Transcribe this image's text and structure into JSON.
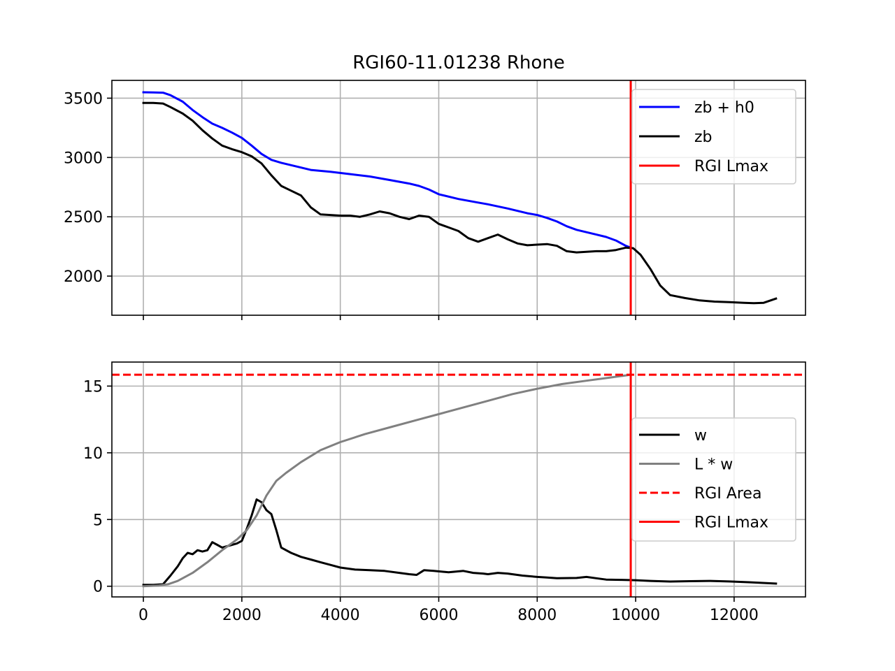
{
  "figure": {
    "title": "RGI60-11.01238 Rhone"
  },
  "colors": {
    "zb_h0": "#0000ff",
    "zb": "#000000",
    "lmax": "#ff0000",
    "w": "#000000",
    "Lw": "#808080",
    "area": "#ff0000",
    "grid": "#b0b0b0"
  },
  "chart_data": [
    {
      "type": "line",
      "title": "RGI60-11.01238 Rhone",
      "xlabel": "",
      "ylabel": "",
      "xlim": [
        -640,
        13450
      ],
      "ylim": [
        1670,
        3650
      ],
      "xticks": [
        0,
        2000,
        4000,
        6000,
        8000,
        10000,
        12000
      ],
      "yticks": [
        2000,
        2500,
        3000,
        3500
      ],
      "show_xtick_labels": false,
      "grid": true,
      "legend": "top-right",
      "series": [
        {
          "name": "zb + h0",
          "color": "#0000ff",
          "style": "solid",
          "x": [
            0,
            200,
            400,
            550,
            800,
            1000,
            1200,
            1400,
            1600,
            1800,
            2000,
            2200,
            2400,
            2600,
            2800,
            3000,
            3200,
            3400,
            3800,
            4200,
            4600,
            5000,
            5400,
            5600,
            5800,
            6000,
            6400,
            6800,
            7000,
            7400,
            7800,
            8000,
            8200,
            8400,
            8600,
            8800,
            9000,
            9200,
            9400,
            9600,
            9800,
            9900
          ],
          "y": [
            3550,
            3548,
            3546,
            3525,
            3470,
            3400,
            3340,
            3285,
            3250,
            3210,
            3165,
            3100,
            3030,
            2980,
            2955,
            2935,
            2915,
            2895,
            2880,
            2860,
            2840,
            2810,
            2780,
            2760,
            2730,
            2690,
            2650,
            2620,
            2605,
            2570,
            2530,
            2515,
            2490,
            2460,
            2420,
            2390,
            2370,
            2350,
            2330,
            2300,
            2255,
            2240
          ]
        },
        {
          "name": "zb",
          "color": "#000000",
          "style": "solid",
          "x": [
            0,
            200,
            400,
            550,
            800,
            1000,
            1200,
            1400,
            1600,
            1800,
            2000,
            2200,
            2400,
            2600,
            2800,
            3000,
            3200,
            3400,
            3600,
            3800,
            4000,
            4200,
            4400,
            4600,
            4800,
            5000,
            5200,
            5400,
            5600,
            5800,
            6000,
            6200,
            6400,
            6600,
            6800,
            7000,
            7200,
            7400,
            7600,
            7800,
            8000,
            8200,
            8400,
            8600,
            8800,
            9000,
            9200,
            9400,
            9600,
            9800,
            9950,
            10100,
            10300,
            10500,
            10700,
            11000,
            11300,
            11600,
            11900,
            12200,
            12400,
            12600,
            12850
          ],
          "y": [
            3460,
            3460,
            3455,
            3425,
            3370,
            3310,
            3230,
            3160,
            3100,
            3070,
            3045,
            3010,
            2950,
            2850,
            2760,
            2720,
            2680,
            2580,
            2520,
            2515,
            2510,
            2510,
            2500,
            2520,
            2545,
            2530,
            2500,
            2480,
            2510,
            2500,
            2440,
            2410,
            2380,
            2320,
            2290,
            2320,
            2350,
            2310,
            2275,
            2260,
            2265,
            2270,
            2255,
            2210,
            2200,
            2205,
            2210,
            2210,
            2220,
            2240,
            2235,
            2180,
            2060,
            1920,
            1840,
            1815,
            1795,
            1785,
            1780,
            1775,
            1772,
            1775,
            1810
          ]
        }
      ],
      "vlines": [
        {
          "name": "RGI Lmax",
          "x": 9900,
          "color": "#ff0000",
          "style": "solid"
        }
      ]
    },
    {
      "type": "line",
      "title": "",
      "xlabel": "",
      "ylabel": "",
      "xlim": [
        -640,
        13450
      ],
      "ylim": [
        -0.8,
        16.8
      ],
      "xticks": [
        0,
        2000,
        4000,
        6000,
        8000,
        10000,
        12000
      ],
      "yticks": [
        0,
        5,
        10,
        15
      ],
      "show_xtick_labels": true,
      "grid": true,
      "legend": "center-right",
      "series": [
        {
          "name": "w",
          "color": "#000000",
          "style": "solid",
          "x": [
            0,
            200,
            400,
            550,
            700,
            800,
            900,
            1000,
            1100,
            1200,
            1300,
            1400,
            1500,
            1600,
            1700,
            1800,
            1900,
            2000,
            2100,
            2200,
            2300,
            2400,
            2500,
            2600,
            2700,
            2800,
            3000,
            3200,
            3400,
            3600,
            3800,
            4000,
            4300,
            4600,
            4900,
            5200,
            5400,
            5550,
            5700,
            5900,
            6200,
            6500,
            6700,
            6900,
            7000,
            7200,
            7400,
            7700,
            8000,
            8200,
            8400,
            8800,
            9000,
            9200,
            9400,
            9700,
            10000,
            10300,
            10700,
            11100,
            11500,
            11900,
            12300,
            12850
          ],
          "y": [
            0.1,
            0.1,
            0.15,
            0.8,
            1.5,
            2.1,
            2.5,
            2.4,
            2.7,
            2.6,
            2.7,
            3.3,
            3.1,
            2.9,
            3.0,
            3.1,
            3.2,
            3.4,
            4.3,
            5.3,
            6.5,
            6.3,
            5.7,
            5.4,
            4.2,
            2.9,
            2.5,
            2.2,
            2.0,
            1.8,
            1.6,
            1.4,
            1.25,
            1.2,
            1.15,
            1.0,
            0.9,
            0.85,
            1.2,
            1.15,
            1.05,
            1.15,
            1.0,
            0.95,
            0.9,
            1.0,
            0.95,
            0.8,
            0.7,
            0.65,
            0.6,
            0.62,
            0.7,
            0.6,
            0.5,
            0.48,
            0.45,
            0.4,
            0.35,
            0.38,
            0.4,
            0.36,
            0.3,
            0.2
          ]
        },
        {
          "name": "L * w",
          "color": "#808080",
          "style": "solid",
          "x": [
            0,
            300,
            500,
            700,
            1000,
            1300,
            1600,
            1900,
            2100,
            2300,
            2500,
            2700,
            2900,
            3200,
            3600,
            4000,
            4500,
            5000,
            5600,
            6000,
            6500,
            7000,
            7500,
            8000,
            8500,
            9000,
            9500,
            9800,
            9900
          ],
          "y": [
            0,
            0.05,
            0.15,
            0.4,
            1.0,
            1.8,
            2.7,
            3.5,
            4.2,
            5.3,
            6.8,
            7.9,
            8.5,
            9.3,
            10.2,
            10.8,
            11.4,
            11.9,
            12.5,
            12.9,
            13.4,
            13.9,
            14.4,
            14.8,
            15.15,
            15.4,
            15.65,
            15.8,
            15.85
          ]
        }
      ],
      "hlines": [
        {
          "name": "RGI Area",
          "y": 15.85,
          "color": "#ff0000",
          "style": "dashed"
        }
      ],
      "vlines": [
        {
          "name": "RGI Lmax",
          "x": 9900,
          "color": "#ff0000",
          "style": "solid"
        }
      ]
    }
  ]
}
